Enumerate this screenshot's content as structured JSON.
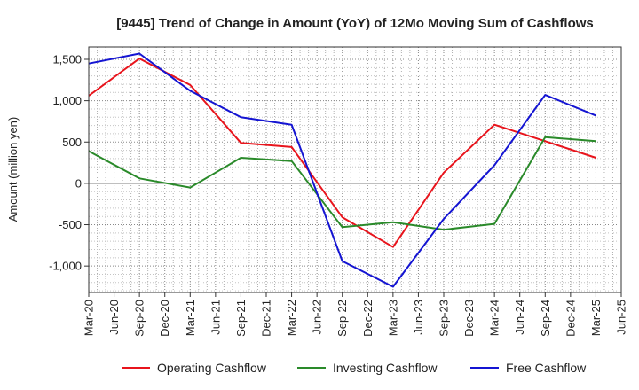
{
  "chart_data": {
    "type": "line",
    "title": "[9445]  Trend of Change in Amount (YoY) of 12Mo Moving Sum of Cashflows",
    "xlabel": "",
    "ylabel": "Amount (million yen)",
    "ylim": [
      -1320,
      1650
    ],
    "yticks": [
      -1000,
      -500,
      0,
      500,
      1000,
      1500
    ],
    "ytick_labels": [
      "-1,000",
      "-500",
      "0",
      "500",
      "1,000",
      "1,500"
    ],
    "grid": true,
    "legend_position": "bottom",
    "categories": [
      "Mar-20",
      "Jun-20",
      "Sep-20",
      "Dec-20",
      "Mar-21",
      "Jun-21",
      "Sep-21",
      "Dec-21",
      "Mar-22",
      "Jun-22",
      "Sep-22",
      "Dec-22",
      "Mar-23",
      "Jun-23",
      "Sep-23",
      "Dec-23",
      "Mar-24",
      "Jun-24",
      "Sep-24",
      "Dec-24",
      "Mar-25",
      "Jun-25"
    ],
    "series": [
      {
        "name": "Operating Cashflow",
        "color": "#e8141c",
        "values": [
          1060,
          null,
          1510,
          null,
          1190,
          null,
          490,
          null,
          440,
          null,
          -410,
          null,
          -770,
          null,
          130,
          null,
          710,
          null,
          510,
          null,
          310,
          null
        ]
      },
      {
        "name": "Investing Cashflow",
        "color": "#2a8a2a",
        "values": [
          390,
          null,
          60,
          null,
          -50,
          null,
          310,
          null,
          270,
          null,
          -530,
          null,
          -470,
          null,
          -560,
          null,
          -490,
          null,
          560,
          null,
          510,
          null
        ]
      },
      {
        "name": "Free Cashflow",
        "color": "#1414d2",
        "values": [
          1450,
          null,
          1570,
          null,
          1120,
          null,
          800,
          null,
          710,
          null,
          -940,
          null,
          -1250,
          null,
          -430,
          null,
          220,
          null,
          1070,
          null,
          820,
          null
        ]
      }
    ]
  }
}
